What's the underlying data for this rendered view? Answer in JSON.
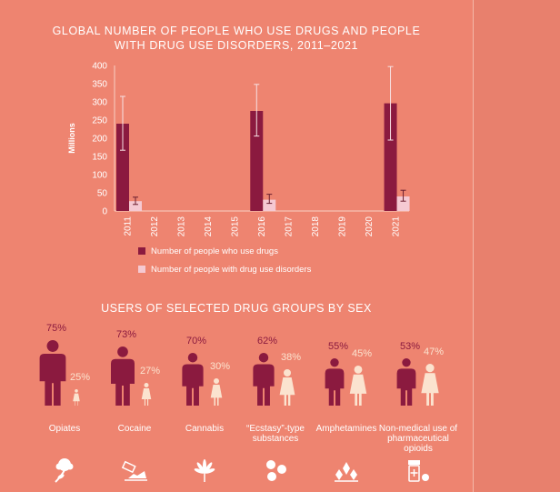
{
  "chart_data": [
    {
      "type": "bar",
      "title": "GLOBAL NUMBER OF PEOPLE WHO USE DRUGS AND PEOPLE WITH DRUG USE DISORDERS, 2011–2021",
      "ylabel": "Millions",
      "ylim": [
        0,
        400
      ],
      "yticks": [
        0,
        50,
        100,
        150,
        200,
        250,
        300,
        350,
        400
      ],
      "categories": [
        "2011",
        "2012",
        "2013",
        "2014",
        "2015",
        "2016",
        "2017",
        "2018",
        "2019",
        "2020",
        "2021"
      ],
      "series": [
        {
          "name": "Number of people who use drugs",
          "color": "#8B1A3F",
          "values": [
            240,
            null,
            null,
            null,
            null,
            275,
            null,
            null,
            null,
            null,
            296
          ],
          "error_low": [
            167,
            null,
            null,
            null,
            null,
            206,
            null,
            null,
            null,
            null,
            195
          ],
          "error_high": [
            315,
            null,
            null,
            null,
            null,
            348,
            null,
            null,
            null,
            null,
            397
          ]
        },
        {
          "name": "Number of people with drug use disorders",
          "color": "#F5C9D2",
          "values": [
            27,
            null,
            null,
            null,
            null,
            31,
            null,
            null,
            null,
            null,
            40
          ],
          "error_low": [
            18,
            null,
            null,
            null,
            null,
            21,
            null,
            null,
            null,
            null,
            27
          ],
          "error_high": [
            38,
            null,
            null,
            null,
            null,
            46,
            null,
            null,
            null,
            null,
            57
          ]
        }
      ],
      "legend_position": "bottom-left",
      "grid": false
    },
    {
      "type": "pictograph",
      "title": "USERS OF SELECTED DRUG GROUPS BY SEX",
      "groups": [
        {
          "label": "Opiates",
          "male": 75,
          "female": 25,
          "male_label": "75%",
          "female_label": "25%",
          "icon": "poppy-icon"
        },
        {
          "label": "Cocaine",
          "male": 73,
          "female": 27,
          "male_label": "73%",
          "female_label": "27%",
          "icon": "cocaine-icon"
        },
        {
          "label": "Cannabis",
          "male": 70,
          "female": 30,
          "male_label": "70%",
          "female_label": "30%",
          "icon": "cannabis-leaf-icon"
        },
        {
          "label": "“Ecstasy”-type substances",
          "male": 62,
          "female": 38,
          "male_label": "62%",
          "female_label": "38%",
          "icon": "pills-icon"
        },
        {
          "label": "Amphetamines",
          "male": 55,
          "female": 45,
          "male_label": "55%",
          "female_label": "45%",
          "icon": "crystals-icon"
        },
        {
          "label": "Non-medical use of pharmaceutical opioids",
          "male": 53,
          "female": 47,
          "male_label": "53%",
          "female_label": "47%",
          "icon": "pill-bottle-icon"
        }
      ],
      "colors": {
        "male": "#8B1A3F",
        "female": "#FBE3CF"
      }
    }
  ]
}
